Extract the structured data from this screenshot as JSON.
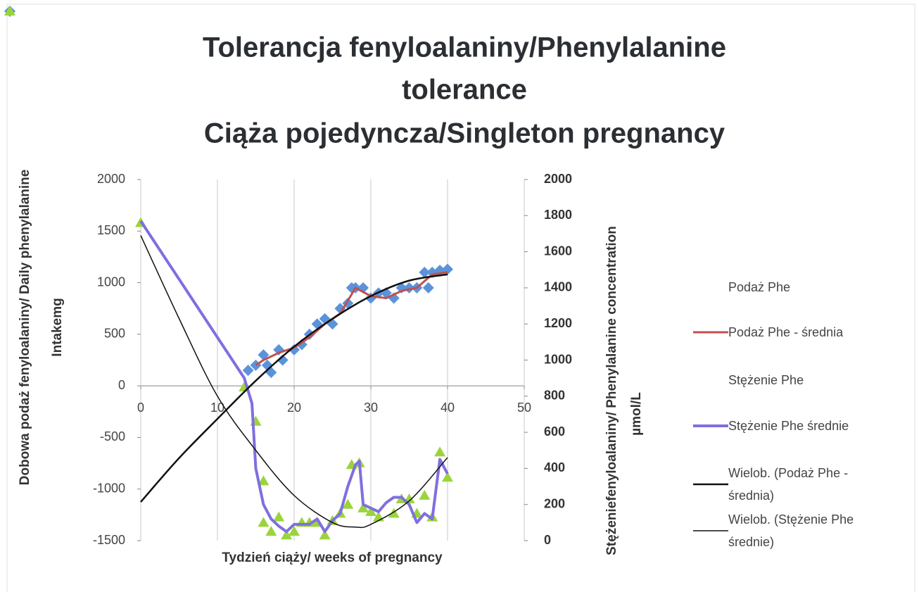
{
  "chart_data": {
    "type": "combo",
    "title": [
      "Tolerancja fenyloalaniny/Phenylalanine",
      "tolerance",
      "Ciąża pojedyncza/Singleton pregnancy"
    ],
    "x_label": "Tydzień ciąży/ weeks of pregnancy",
    "y_label": [
      "Dobowa podaż fenyloalaniny/ Daily phenylalanine",
      "Intakemg"
    ],
    "y2_label": [
      "Stężeniefenyloalaniny/ Phenylalanine concentration",
      "µmol/L"
    ],
    "xlim": [
      0,
      50
    ],
    "xticks": [
      0,
      10,
      20,
      30,
      40,
      50
    ],
    "ylim": [
      -1500,
      2000
    ],
    "yticks": [
      -1500,
      -1000,
      -500,
      0,
      500,
      1000,
      1500,
      2000
    ],
    "y2lim": [
      0,
      2000
    ],
    "y2ticks": [
      0,
      200,
      400,
      600,
      800,
      1000,
      1200,
      1400,
      1600,
      1800,
      2000
    ],
    "grid": "x",
    "legend": "right",
    "series": [
      {
        "name": "Podaż Phe",
        "type": "scatter",
        "marker": "diamond",
        "color": "#5b93db",
        "x": [
          14,
          15,
          16,
          16.5,
          17,
          18,
          18.5,
          20,
          21,
          22,
          23,
          24,
          25,
          26,
          27,
          27.5,
          28,
          29,
          30,
          31,
          32,
          33,
          34,
          35,
          36,
          37,
          37.5,
          38,
          39,
          40
        ],
        "values": [
          150,
          200,
          300,
          200,
          130,
          350,
          250,
          350,
          400,
          500,
          600,
          650,
          600,
          750,
          800,
          950,
          950,
          950,
          850,
          900,
          900,
          850,
          950,
          950,
          950,
          1100,
          950,
          1100,
          1120,
          1130
        ]
      },
      {
        "name": "Podaż  Phe - średnia",
        "type": "line",
        "color": "#c0504d",
        "width": 3,
        "x": [
          15,
          16,
          18,
          20,
          22,
          24,
          26,
          28,
          30,
          32,
          34,
          36,
          38,
          40
        ],
        "values": [
          200,
          250,
          320,
          370,
          470,
          600,
          700,
          950,
          870,
          850,
          920,
          950,
          1080,
          1100
        ]
      },
      {
        "name": "Stężenie Phe",
        "type": "scatter",
        "marker": "triangle",
        "color": "#9bd43a",
        "axis": "y2",
        "x": [
          0,
          13.5,
          15,
          16,
          16,
          17,
          18,
          19,
          20,
          21,
          22,
          23,
          24,
          25,
          26,
          27,
          27.5,
          28.5,
          29,
          30,
          31,
          33,
          34,
          35,
          36,
          37,
          38,
          39,
          40
        ],
        "values": [
          1760,
          850,
          660,
          330,
          100,
          50,
          130,
          30,
          50,
          100,
          100,
          100,
          30,
          110,
          150,
          200,
          420,
          430,
          180,
          160,
          130,
          150,
          230,
          230,
          150,
          250,
          130,
          490,
          350
        ]
      },
      {
        "name": "Stężenie Phe średnie",
        "type": "line",
        "color": "#7f6fdf",
        "width": 4,
        "axis": "y2",
        "x": [
          0,
          13.5,
          14.5,
          15,
          16,
          17,
          18,
          19,
          20,
          22,
          23,
          24,
          25,
          26,
          27,
          28,
          28.5,
          29,
          30,
          31,
          32,
          33,
          34,
          35,
          36,
          37,
          38,
          39,
          40
        ],
        "values": [
          1770,
          900,
          760,
          400,
          200,
          120,
          80,
          50,
          90,
          90,
          120,
          50,
          110,
          150,
          300,
          420,
          440,
          200,
          180,
          160,
          210,
          240,
          240,
          200,
          100,
          150,
          120,
          450,
          370
        ]
      },
      {
        "name": "Wielob. (Podaż  Phe - średnia)",
        "type": "line",
        "color": "#111111",
        "width": 2.5,
        "smooth": true,
        "x": [
          0,
          5,
          10,
          15,
          20,
          25,
          30,
          35,
          40
        ],
        "values": [
          -1125,
          -700,
          -320,
          50,
          380,
          650,
          870,
          1020,
          1080
        ]
      },
      {
        "name": "Wielob. (Stężenie Phe średnie)",
        "type": "line",
        "color": "#111111",
        "width": 1.5,
        "axis": "y2",
        "smooth": true,
        "x": [
          0,
          5,
          10,
          15,
          20,
          25,
          28,
          30,
          35,
          40
        ],
        "values": [
          1690,
          1230,
          800,
          500,
          250,
          100,
          75,
          90,
          220,
          460
        ]
      }
    ]
  }
}
